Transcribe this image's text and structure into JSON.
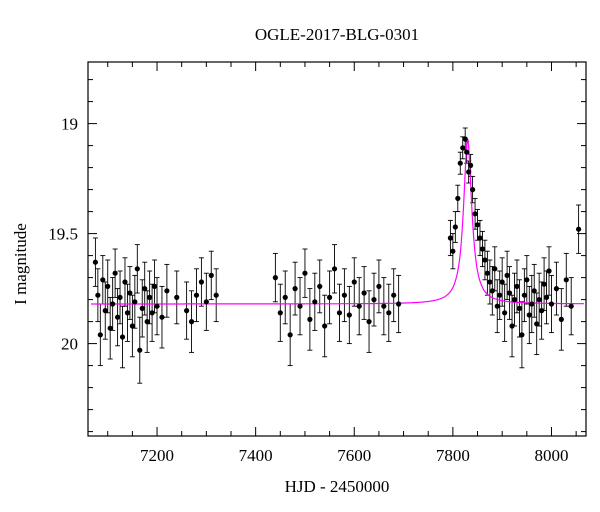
{
  "chart_data": {
    "type": "scatter",
    "title": "OGLE-2017-BLG-0301",
    "xlabel": "HJD - 2450000",
    "ylabel": "I magnitude",
    "xlim": [
      7060,
      8070
    ],
    "ylim": [
      20.42,
      18.72
    ],
    "y_inverted": true,
    "grid": false,
    "xticks": [
      7200,
      7400,
      7600,
      7800,
      8000
    ],
    "xtick_labels": [
      "7200",
      "7400",
      "7600",
      "7800",
      "8000"
    ],
    "yticks": [
      19,
      19.5,
      20
    ],
    "ytick_labels": [
      "19",
      "19.5",
      "20"
    ],
    "colors": {
      "points": "#000000",
      "model": "#ff00ff",
      "axes": "#000000"
    },
    "series": [
      {
        "kind": "points",
        "x": [
          7075,
          7080,
          7085,
          7090,
          7095,
          7100,
          7105,
          7110,
          7115,
          7120,
          7125,
          7130,
          7135,
          7140,
          7145,
          7150,
          7155,
          7160,
          7165,
          7170,
          7175,
          7180,
          7185,
          7190,
          7195,
          7200,
          7210,
          7220,
          7240,
          7260,
          7270,
          7280,
          7290,
          7300,
          7310,
          7320,
          7440,
          7450,
          7460,
          7470,
          7480,
          7490,
          7500,
          7510,
          7520,
          7530,
          7540,
          7550,
          7560,
          7570,
          7580,
          7590,
          7600,
          7610,
          7620,
          7630,
          7640,
          7650,
          7660,
          7670,
          7680,
          7690,
          7795,
          7800,
          7805,
          7810,
          7815,
          7820,
          7825,
          7828,
          7832,
          7836,
          7840,
          7845,
          7850,
          7855,
          7860,
          7865,
          7870,
          7875,
          7880,
          7885,
          7890,
          7895,
          7900,
          7905,
          7910,
          7915,
          7920,
          7925,
          7930,
          7935,
          7940,
          7945,
          7950,
          7955,
          7960,
          7965,
          7970,
          7975,
          7980,
          7985,
          7990,
          7995,
          8000,
          8010,
          8020,
          8030,
          8040,
          8055
        ],
        "y": [
          19.63,
          19.78,
          19.96,
          19.71,
          19.85,
          19.74,
          19.93,
          19.82,
          19.68,
          19.88,
          19.79,
          19.97,
          19.72,
          19.86,
          19.77,
          19.92,
          19.81,
          19.66,
          20.03,
          19.84,
          19.75,
          19.9,
          19.79,
          19.86,
          19.74,
          19.83,
          19.88,
          19.76,
          19.79,
          19.85,
          19.9,
          19.78,
          19.72,
          19.81,
          19.69,
          19.78,
          19.7,
          19.86,
          19.79,
          19.96,
          19.75,
          19.83,
          19.68,
          19.89,
          19.81,
          19.74,
          19.92,
          19.79,
          19.66,
          19.86,
          19.78,
          19.87,
          19.72,
          19.83,
          19.77,
          19.9,
          19.8,
          19.74,
          19.83,
          19.86,
          19.78,
          19.82,
          19.52,
          19.58,
          19.47,
          19.34,
          19.18,
          19.11,
          19.07,
          19.13,
          19.22,
          19.19,
          19.3,
          19.41,
          19.46,
          19.52,
          19.57,
          19.62,
          19.68,
          19.72,
          19.76,
          19.66,
          19.83,
          19.78,
          19.72,
          19.86,
          19.69,
          19.77,
          19.92,
          19.8,
          19.74,
          19.84,
          19.96,
          19.78,
          19.71,
          19.87,
          19.82,
          19.76,
          19.91,
          19.8,
          19.85,
          19.73,
          19.79,
          19.67,
          19.82,
          19.75,
          19.89,
          19.71,
          19.83,
          19.48
        ],
        "err": [
          0.11,
          0.12,
          0.14,
          0.11,
          0.13,
          0.12,
          0.14,
          0.12,
          0.11,
          0.13,
          0.12,
          0.14,
          0.11,
          0.13,
          0.12,
          0.14,
          0.12,
          0.11,
          0.15,
          0.13,
          0.12,
          0.14,
          0.12,
          0.13,
          0.12,
          0.13,
          0.14,
          0.12,
          0.12,
          0.13,
          0.14,
          0.12,
          0.11,
          0.13,
          0.11,
          0.12,
          0.11,
          0.13,
          0.12,
          0.14,
          0.12,
          0.13,
          0.11,
          0.14,
          0.13,
          0.12,
          0.14,
          0.12,
          0.11,
          0.13,
          0.12,
          0.13,
          0.11,
          0.13,
          0.12,
          0.14,
          0.12,
          0.12,
          0.13,
          0.13,
          0.12,
          0.13,
          0.08,
          0.08,
          0.07,
          0.06,
          0.05,
          0.05,
          0.05,
          0.05,
          0.05,
          0.05,
          0.06,
          0.07,
          0.07,
          0.08,
          0.08,
          0.09,
          0.1,
          0.1,
          0.11,
          0.1,
          0.12,
          0.11,
          0.11,
          0.13,
          0.11,
          0.12,
          0.14,
          0.12,
          0.12,
          0.13,
          0.15,
          0.12,
          0.11,
          0.13,
          0.13,
          0.12,
          0.14,
          0.12,
          0.13,
          0.12,
          0.12,
          0.11,
          0.13,
          0.12,
          0.14,
          0.12,
          0.13,
          0.11
        ]
      },
      {
        "kind": "model",
        "baseline": 19.82,
        "t0": 7830,
        "peak_mag": 19.07,
        "tE_days": 10
      }
    ]
  }
}
